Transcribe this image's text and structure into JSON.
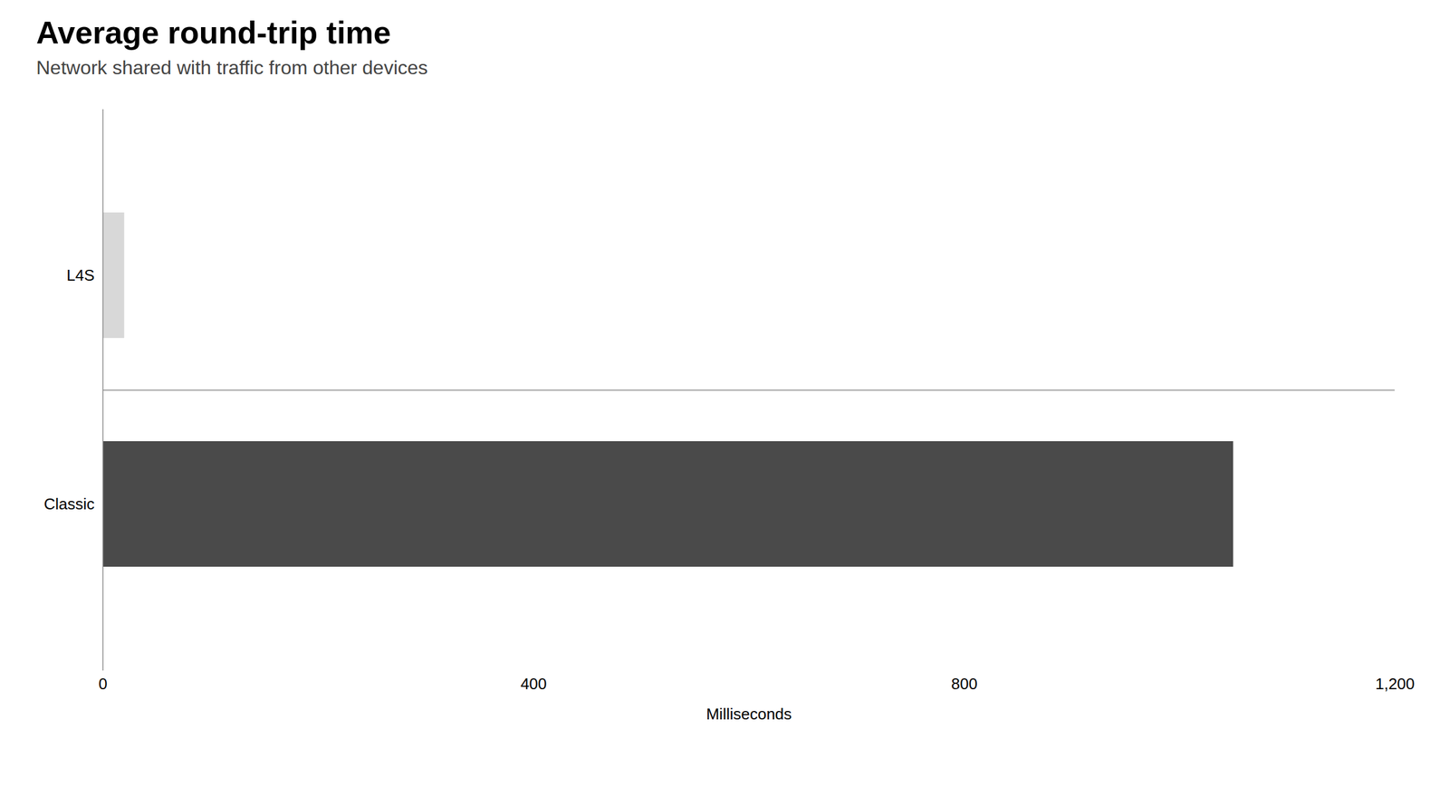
{
  "chart_data": {
    "type": "bar",
    "orientation": "horizontal",
    "title": "Average round-trip time",
    "subtitle": "Network shared with traffic from other devices",
    "categories": [
      "Classic",
      "L4S"
    ],
    "values": [
      1050,
      20
    ],
    "colors": [
      "#4a4a4a",
      "#d8d8d8"
    ],
    "xlabel": "Milliseconds",
    "xlim": [
      0,
      1200
    ],
    "xticks": [
      0,
      400,
      800,
      {
        "value": 1200,
        "label": "1,200"
      }
    ]
  }
}
